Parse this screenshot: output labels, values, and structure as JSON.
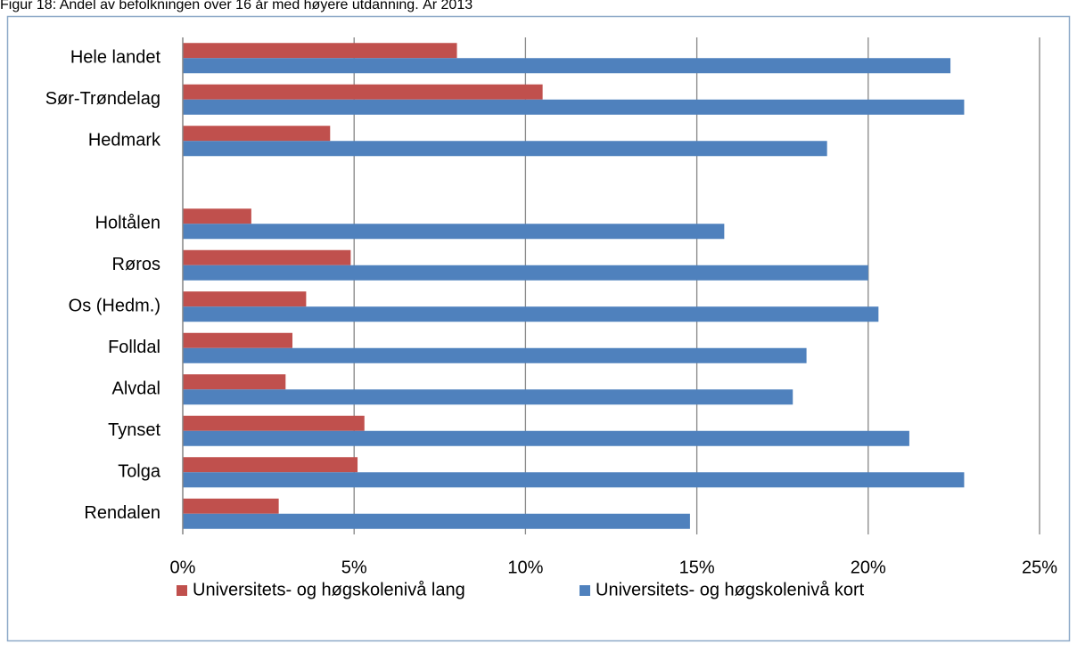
{
  "chart_data": {
    "type": "bar",
    "orientation": "horizontal",
    "title": "Figur 18: Andel av befolkningen over 16 år med høyere utdanning. År 2013",
    "categories": [
      "Hele landet",
      "Sør-Trøndelag",
      "Hedmark",
      null,
      "Holtålen",
      "Røros",
      "Os (Hedm.)",
      "Folldal",
      "Alvdal",
      "Tynset",
      "Tolga",
      "Rendalen"
    ],
    "series": [
      {
        "name": "Universitets- og høgskolenivå lang",
        "color": "#c0504d",
        "values": [
          8.0,
          10.5,
          4.3,
          null,
          2.0,
          4.9,
          3.6,
          3.2,
          3.0,
          5.3,
          5.1,
          2.8
        ]
      },
      {
        "name": "Universitets- og høgskolenivå kort",
        "color": "#4f81bd",
        "values": [
          22.4,
          22.8,
          18.8,
          null,
          15.8,
          20.0,
          20.3,
          18.2,
          17.8,
          21.2,
          22.8,
          14.8
        ]
      }
    ],
    "xlim": [
      0,
      25
    ],
    "xticks": [
      {
        "value": 0,
        "label": "0%"
      },
      {
        "value": 5,
        "label": "5%"
      },
      {
        "value": 10,
        "label": "10%"
      },
      {
        "value": 15,
        "label": "15%"
      },
      {
        "value": 20,
        "label": "20%"
      },
      {
        "value": 25,
        "label": "25%"
      }
    ],
    "grid": true,
    "legend": "bottom"
  }
}
